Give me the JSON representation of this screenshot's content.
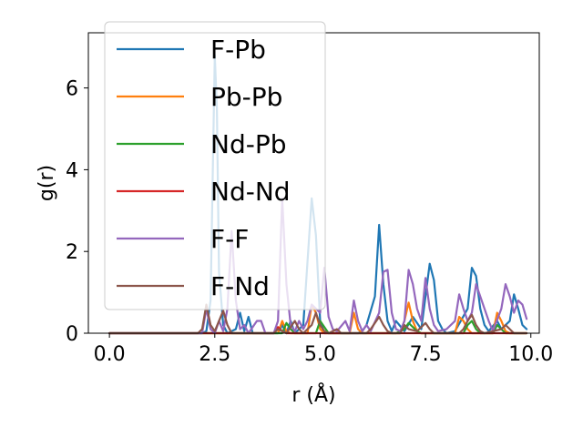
{
  "chart_data": {
    "type": "line",
    "xlabel": "r (Å)",
    "ylabel": "g(r)",
    "xlim": [
      -0.5,
      10.2
    ],
    "ylim": [
      0,
      7.35
    ],
    "xticks": [
      0.0,
      2.5,
      5.0,
      7.5,
      10.0
    ],
    "xtick_labels": [
      "0.0",
      "2.5",
      "5.0",
      "7.5",
      "10.0"
    ],
    "yticks": [
      0,
      2,
      4,
      6
    ],
    "ytick_labels": [
      "0",
      "2",
      "4",
      "6"
    ],
    "grid": false,
    "legend_position": "upper-left",
    "series": [
      {
        "name": "F-Pb",
        "color": "#1f77b4",
        "points": [
          [
            0.0,
            0
          ],
          [
            2.2,
            0
          ],
          [
            2.3,
            0.05
          ],
          [
            2.4,
            0.8
          ],
          [
            2.5,
            6.8
          ],
          [
            2.55,
            5.5
          ],
          [
            2.6,
            1.5
          ],
          [
            2.7,
            0.2
          ],
          [
            2.8,
            0
          ],
          [
            3.0,
            0.1
          ],
          [
            3.1,
            0.5
          ],
          [
            3.2,
            0.05
          ],
          [
            3.3,
            0.4
          ],
          [
            3.4,
            0
          ],
          [
            4.0,
            0
          ],
          [
            4.1,
            0.2
          ],
          [
            4.2,
            0
          ],
          [
            4.3,
            0.3
          ],
          [
            4.4,
            0
          ],
          [
            4.6,
            0.2
          ],
          [
            4.8,
            3.3
          ],
          [
            4.9,
            2.4
          ],
          [
            5.0,
            0.3
          ],
          [
            5.1,
            0
          ],
          [
            5.9,
            0
          ],
          [
            6.0,
            0.05
          ],
          [
            6.1,
            0.2
          ],
          [
            6.3,
            0.9
          ],
          [
            6.4,
            2.65
          ],
          [
            6.5,
            1.2
          ],
          [
            6.6,
            0.3
          ],
          [
            6.7,
            0.05
          ],
          [
            6.8,
            0.3
          ],
          [
            7.0,
            0.05
          ],
          [
            7.2,
            0.4
          ],
          [
            7.4,
            0.1
          ],
          [
            7.5,
            0.9
          ],
          [
            7.6,
            1.7
          ],
          [
            7.7,
            1.3
          ],
          [
            7.8,
            0.3
          ],
          [
            7.9,
            0.1
          ],
          [
            8.0,
            0
          ],
          [
            8.2,
            0.05
          ],
          [
            8.5,
            0.6
          ],
          [
            8.6,
            1.6
          ],
          [
            8.7,
            1.4
          ],
          [
            8.8,
            0.6
          ],
          [
            8.9,
            0.2
          ],
          [
            9.0,
            0.05
          ],
          [
            9.2,
            0.3
          ],
          [
            9.3,
            0.1
          ],
          [
            9.5,
            0.3
          ],
          [
            9.6,
            0.95
          ],
          [
            9.7,
            0.6
          ],
          [
            9.8,
            0.2
          ],
          [
            9.9,
            0.1
          ]
        ]
      },
      {
        "name": "Pb-Pb",
        "color": "#ff7f0e",
        "points": [
          [
            0.0,
            0
          ],
          [
            4.0,
            0
          ],
          [
            4.1,
            0.3
          ],
          [
            4.2,
            0.05
          ],
          [
            4.3,
            0
          ],
          [
            4.7,
            0
          ],
          [
            4.8,
            0.7
          ],
          [
            4.9,
            0.5
          ],
          [
            5.0,
            0.1
          ],
          [
            5.1,
            0
          ],
          [
            5.7,
            0
          ],
          [
            5.8,
            0.5
          ],
          [
            5.9,
            0.1
          ],
          [
            6.0,
            0
          ],
          [
            6.9,
            0
          ],
          [
            7.0,
            0.3
          ],
          [
            7.1,
            0.75
          ],
          [
            7.2,
            0.3
          ],
          [
            7.3,
            0.05
          ],
          [
            7.4,
            0
          ],
          [
            8.2,
            0
          ],
          [
            8.3,
            0.4
          ],
          [
            8.4,
            0.3
          ],
          [
            8.5,
            0.1
          ],
          [
            8.6,
            0
          ],
          [
            9.1,
            0
          ],
          [
            9.2,
            0.5
          ],
          [
            9.3,
            0.3
          ],
          [
            9.4,
            0.05
          ],
          [
            9.5,
            0
          ],
          [
            9.9,
            0
          ]
        ]
      },
      {
        "name": "Nd-Pb",
        "color": "#2ca02c",
        "points": [
          [
            0.0,
            0
          ],
          [
            4.1,
            0
          ],
          [
            4.2,
            0.25
          ],
          [
            4.3,
            0.1
          ],
          [
            4.4,
            0
          ],
          [
            4.9,
            0
          ],
          [
            5.0,
            0.3
          ],
          [
            5.1,
            0.15
          ],
          [
            5.2,
            0
          ],
          [
            6.8,
            0
          ],
          [
            7.0,
            0.1
          ],
          [
            7.1,
            0.25
          ],
          [
            7.2,
            0.15
          ],
          [
            7.3,
            0.05
          ],
          [
            7.4,
            0
          ],
          [
            8.4,
            0
          ],
          [
            8.5,
            0.2
          ],
          [
            8.6,
            0.3
          ],
          [
            8.7,
            0.1
          ],
          [
            8.8,
            0
          ],
          [
            9.1,
            0
          ],
          [
            9.2,
            0.2
          ],
          [
            9.3,
            0.1
          ],
          [
            9.4,
            0
          ],
          [
            9.9,
            0
          ]
        ]
      },
      {
        "name": "Nd-Nd",
        "color": "#d62728",
        "points": [
          [
            0.0,
            0
          ],
          [
            3.9,
            0
          ],
          [
            4.0,
            0.15
          ],
          [
            4.1,
            0.05
          ],
          [
            4.2,
            0
          ],
          [
            9.9,
            0
          ]
        ]
      },
      {
        "name": "F-F",
        "color": "#9467bd",
        "points": [
          [
            0.0,
            0
          ],
          [
            2.2,
            0
          ],
          [
            2.3,
            0.6
          ],
          [
            2.4,
            0.1
          ],
          [
            2.5,
            0
          ],
          [
            2.6,
            0.3
          ],
          [
            2.7,
            0.05
          ],
          [
            2.8,
            0.6
          ],
          [
            2.9,
            2.5
          ],
          [
            3.0,
            0.8
          ],
          [
            3.1,
            0.1
          ],
          [
            3.2,
            0.2
          ],
          [
            3.3,
            0
          ],
          [
            3.5,
            0.3
          ],
          [
            3.6,
            0.3
          ],
          [
            3.7,
            0
          ],
          [
            3.9,
            0
          ],
          [
            4.0,
            0.3
          ],
          [
            4.1,
            3.3
          ],
          [
            4.2,
            1.2
          ],
          [
            4.3,
            0.2
          ],
          [
            4.4,
            0.05
          ],
          [
            4.5,
            0.3
          ],
          [
            4.6,
            0.1
          ],
          [
            4.7,
            0.3
          ],
          [
            4.8,
            0.7
          ],
          [
            4.9,
            0.6
          ],
          [
            5.0,
            0.5
          ],
          [
            5.1,
            1.6
          ],
          [
            5.2,
            0.4
          ],
          [
            5.3,
            0.1
          ],
          [
            5.4,
            0.05
          ],
          [
            5.6,
            0.3
          ],
          [
            5.7,
            0.05
          ],
          [
            5.8,
            0.8
          ],
          [
            5.9,
            0.3
          ],
          [
            6.0,
            0.05
          ],
          [
            6.1,
            0.2
          ],
          [
            6.2,
            0.05
          ],
          [
            6.4,
            0.5
          ],
          [
            6.5,
            1.5
          ],
          [
            6.6,
            1.55
          ],
          [
            6.7,
            0.5
          ],
          [
            6.8,
            0.1
          ],
          [
            6.9,
            0.05
          ],
          [
            7.0,
            0.3
          ],
          [
            7.1,
            1.55
          ],
          [
            7.2,
            1.2
          ],
          [
            7.3,
            0.6
          ],
          [
            7.4,
            0.3
          ],
          [
            7.5,
            1.35
          ],
          [
            7.6,
            0.6
          ],
          [
            7.7,
            0.2
          ],
          [
            7.8,
            0.05
          ],
          [
            8.0,
            0.1
          ],
          [
            8.2,
            0.3
          ],
          [
            8.3,
            0.95
          ],
          [
            8.4,
            0.6
          ],
          [
            8.5,
            0.3
          ],
          [
            8.6,
            0.5
          ],
          [
            8.7,
            1.2
          ],
          [
            8.8,
            0.9
          ],
          [
            8.9,
            0.6
          ],
          [
            9.0,
            0.3
          ],
          [
            9.1,
            0.05
          ],
          [
            9.3,
            0.6
          ],
          [
            9.4,
            1.2
          ],
          [
            9.5,
            0.9
          ],
          [
            9.6,
            0.5
          ],
          [
            9.7,
            0.8
          ],
          [
            9.8,
            0.7
          ],
          [
            9.9,
            0.35
          ]
        ]
      },
      {
        "name": "F-Nd",
        "color": "#8c564b",
        "points": [
          [
            0.0,
            0
          ],
          [
            2.1,
            0
          ],
          [
            2.2,
            0.1
          ],
          [
            2.3,
            0.7
          ],
          [
            2.4,
            0.2
          ],
          [
            2.5,
            0.05
          ],
          [
            2.6,
            0.3
          ],
          [
            2.7,
            0.55
          ],
          [
            2.8,
            0.2
          ],
          [
            2.9,
            0
          ],
          [
            3.9,
            0
          ],
          [
            4.0,
            0.1
          ],
          [
            4.1,
            0.05
          ],
          [
            4.2,
            0
          ],
          [
            4.4,
            0.3
          ],
          [
            4.5,
            0.1
          ],
          [
            4.6,
            0
          ],
          [
            4.8,
            0.2
          ],
          [
            4.9,
            0.5
          ],
          [
            5.0,
            0.2
          ],
          [
            5.1,
            0.05
          ],
          [
            5.2,
            0
          ],
          [
            5.4,
            0.1
          ],
          [
            5.5,
            0
          ],
          [
            6.1,
            0
          ],
          [
            6.2,
            0.1
          ],
          [
            6.4,
            0.4
          ],
          [
            6.5,
            0.2
          ],
          [
            6.6,
            0.05
          ],
          [
            6.7,
            0
          ],
          [
            6.9,
            0
          ],
          [
            7.0,
            0.2
          ],
          [
            7.1,
            0.1
          ],
          [
            7.3,
            0.05
          ],
          [
            7.5,
            0.25
          ],
          [
            7.6,
            0.1
          ],
          [
            7.7,
            0
          ],
          [
            8.3,
            0
          ],
          [
            8.4,
            0.1
          ],
          [
            8.5,
            0.3
          ],
          [
            8.6,
            0.45
          ],
          [
            8.7,
            0.2
          ],
          [
            8.8,
            0.05
          ],
          [
            8.9,
            0
          ],
          [
            9.3,
            0.1
          ],
          [
            9.4,
            0.2
          ],
          [
            9.5,
            0.1
          ],
          [
            9.6,
            0
          ],
          [
            9.9,
            0
          ]
        ]
      }
    ]
  }
}
